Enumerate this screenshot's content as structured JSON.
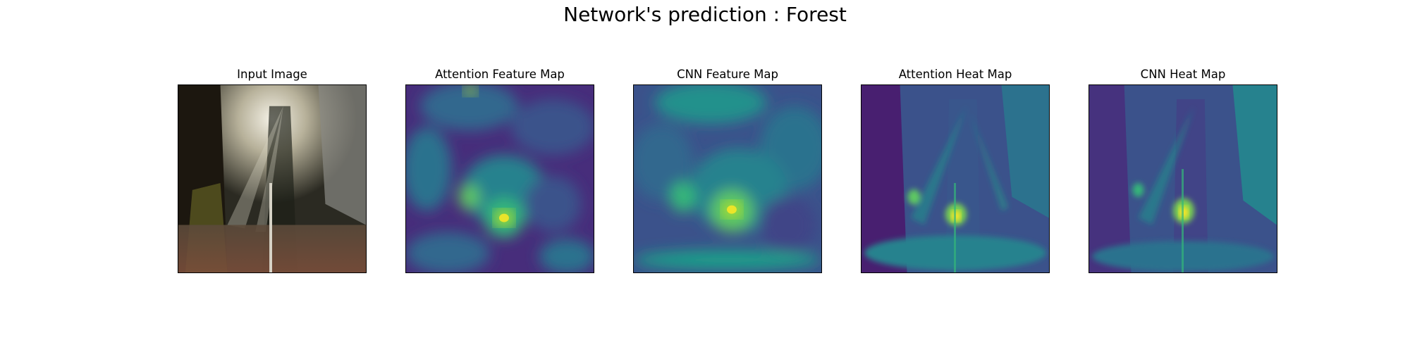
{
  "figure": {
    "suptitle": "Network's prediction : Forest",
    "colormap": "viridis",
    "panels": [
      {
        "title": "Input Image",
        "kind": "photo"
      },
      {
        "title": "Attention Feature Map",
        "kind": "feature-map"
      },
      {
        "title": "CNN Feature Map",
        "kind": "feature-map"
      },
      {
        "title": "Attention Heat Map",
        "kind": "heat-map"
      },
      {
        "title": "CNN Heat Map",
        "kind": "heat-map"
      }
    ]
  },
  "colors": {
    "viridis_low": "#440154",
    "viridis_mid": "#21918c",
    "viridis_high": "#fde725"
  }
}
